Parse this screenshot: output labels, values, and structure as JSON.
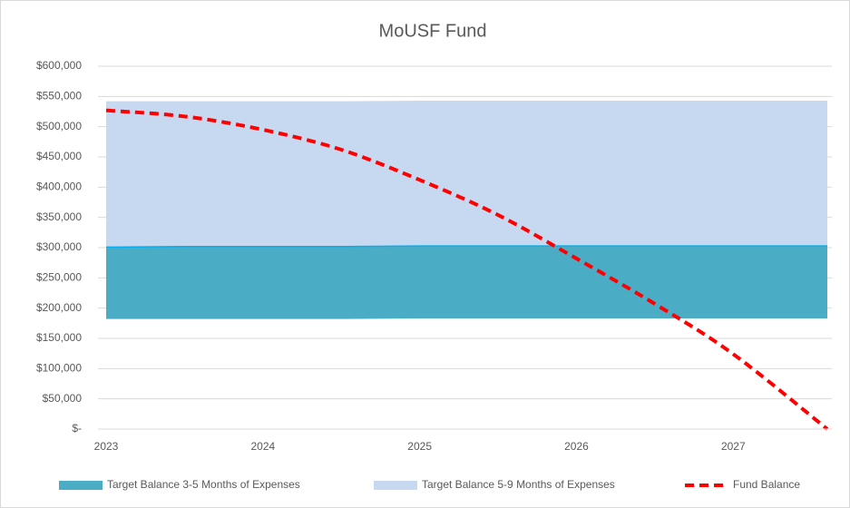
{
  "chart_data": {
    "type": "area_line",
    "title": "MoUSF Fund",
    "x": [
      2023,
      2023.5,
      2024,
      2024.5,
      2025,
      2025.5,
      2026,
      2026.5,
      2027,
      2027.6
    ],
    "xlim": [
      2023,
      2027.6
    ],
    "xticks": [
      2023,
      2024,
      2025,
      2026,
      2027
    ],
    "ylim": [
      0,
      600000
    ],
    "yticks": [
      {
        "value": 0,
        "label": "$-"
      },
      {
        "value": 50000,
        "label": "$50,000"
      },
      {
        "value": 100000,
        "label": "$100,000"
      },
      {
        "value": 150000,
        "label": "$150,000"
      },
      {
        "value": 200000,
        "label": "$200,000"
      },
      {
        "value": 250000,
        "label": "$250,000"
      },
      {
        "value": 300000,
        "label": "$300,000"
      },
      {
        "value": 350000,
        "label": "$350,000"
      },
      {
        "value": 400000,
        "label": "$400,000"
      },
      {
        "value": 450000,
        "label": "$450,000"
      },
      {
        "value": 500000,
        "label": "$500,000"
      },
      {
        "value": 550000,
        "label": "$550,000"
      },
      {
        "value": 600000,
        "label": "$600,000"
      }
    ],
    "grid": true,
    "legend": "bottom",
    "bands": [
      {
        "name": "Target Balance 3-5 Months of Expenses",
        "color": "#4bacc6",
        "edge": "#00b0f0",
        "low": [
          182000,
          182000,
          182000,
          182000,
          183000,
          183000,
          183000,
          183000,
          183000,
          183000
        ],
        "high": [
          302000,
          303000,
          303000,
          303000,
          304000,
          304000,
          304000,
          304000,
          304000,
          304000
        ]
      },
      {
        "name": "Target Balance 5-9 Months of Expenses",
        "color": "#c6d9f1",
        "low": [
          302000,
          303000,
          303000,
          303000,
          304000,
          304000,
          304000,
          304000,
          304000,
          304000
        ],
        "high": [
          542000,
          542000,
          542000,
          542000,
          543000,
          543000,
          543000,
          543000,
          543000,
          543000
        ]
      }
    ],
    "series": [
      {
        "name": "Fund Balance",
        "color": "#ff0000",
        "values": [
          527000,
          517000,
          495000,
          462000,
          412000,
          354000,
          282000,
          207000,
          124000,
          0
        ]
      }
    ]
  }
}
